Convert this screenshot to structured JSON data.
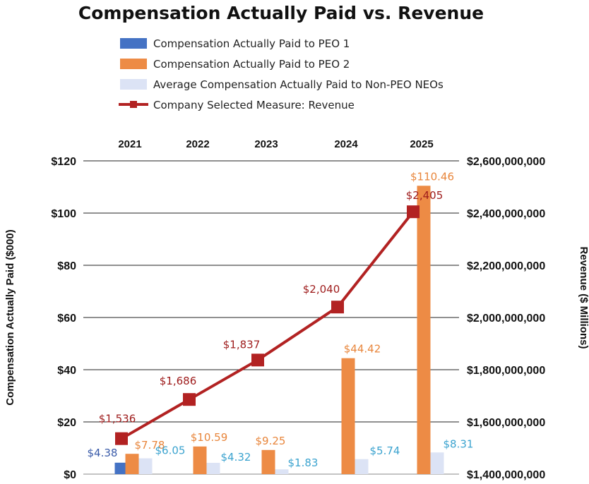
{
  "chart_data": {
    "type": "bar",
    "title": "Compensation Actually Paid vs. Revenue",
    "categories": [
      "2021",
      "2022",
      "2023",
      "2024",
      "2025"
    ],
    "ylabel": "Compensation Actually Paid ($000)",
    "y2label": "Revenue ($ Millions)",
    "ylim": [
      0,
      120
    ],
    "y2lim": [
      1400000000,
      2600000000
    ],
    "yticks": [
      "$0",
      "$20",
      "$40",
      "$60",
      "$80",
      "$100",
      "$120"
    ],
    "y2ticks": [
      "$1,400,000,000",
      "$1,600,000,000",
      "$1,800,000,000",
      "$2,000,000,000",
      "$2,200,000,000",
      "$2,400,000,000",
      "$2,600,000,000"
    ],
    "legend_position": "top",
    "series": [
      {
        "name": "Compensation Actually Paid to PEO 1",
        "kind": "bar",
        "color": "#4472C4",
        "label_color": "#3A5BA9",
        "values": [
          4.38,
          null,
          null,
          null,
          null
        ],
        "labels": [
          "$4.38",
          null,
          null,
          null,
          null
        ]
      },
      {
        "name": "Compensation Actually Paid to PEO 2",
        "kind": "bar",
        "color": "#ED8B45",
        "label_color": "#E8863C",
        "values": [
          7.78,
          10.59,
          9.25,
          44.42,
          110.46
        ],
        "labels": [
          "$7.78",
          "$10.59",
          "$9.25",
          "$44.42",
          "$110.46"
        ]
      },
      {
        "name": "Average Compensation Actually Paid to Non-PEO NEOs",
        "kind": "bar",
        "color": "#DCE3F5",
        "label_color": "#3BA3CF",
        "values": [
          6.05,
          4.32,
          1.83,
          5.74,
          8.31
        ],
        "labels": [
          "$6.05",
          "$4.32",
          "$1.83",
          "$5.74",
          "$8.31"
        ]
      },
      {
        "name": "Company Selected Measure: Revenue",
        "kind": "line",
        "axis": "right",
        "color": "#B22222",
        "label_color": "#9E1B1B",
        "values": [
          1536000000,
          1686000000,
          1837000000,
          2040000000,
          2405000000
        ],
        "labels": [
          "$1,536",
          "$1,686",
          "$1,837",
          "$2,040",
          "$2,405"
        ]
      }
    ]
  }
}
